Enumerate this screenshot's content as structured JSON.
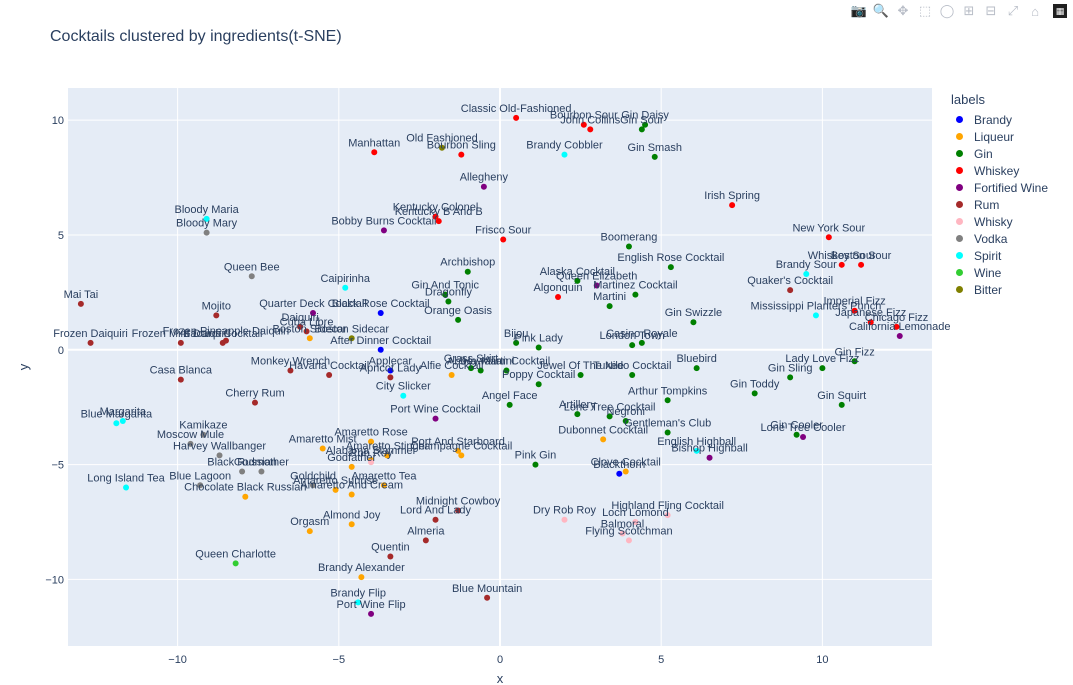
{
  "modebar": {
    "icons": [
      "camera-icon",
      "zoom-icon",
      "pan-icon",
      "box-select-icon",
      "lasso-icon",
      "zoom-in-icon",
      "zoom-out-icon",
      "autoscale-icon",
      "reset-axes-icon",
      "plotly-logo"
    ]
  },
  "chart_data": {
    "type": "scatter",
    "title": "Cocktails clustered by ingredients(t-SNE)",
    "xlabel": "x",
    "ylabel": "y",
    "xlim": [
      -13.4,
      13.4
    ],
    "ylim": [
      -12.9,
      11.4
    ],
    "xticks": [
      -10,
      -5,
      0,
      5,
      10
    ],
    "yticks": [
      -10,
      -5,
      0,
      5,
      10
    ],
    "grid": true,
    "legend": {
      "title": "labels",
      "position": "right"
    },
    "series": [
      {
        "name": "Brandy",
        "color": "#0000ff",
        "points": [
          {
            "x": -3.7,
            "y": 1.6,
            "label": "Black Rose Cocktail"
          },
          {
            "x": -3.7,
            "y": 0.0,
            "label": "After Dinner Cocktail"
          },
          {
            "x": -3.4,
            "y": -0.9,
            "label": "Applecar"
          },
          {
            "x": 3.7,
            "y": -5.4,
            "label": "Blackthorn"
          }
        ]
      },
      {
        "name": "Liqueur",
        "color": "#ffa500",
        "points": [
          {
            "x": -5.9,
            "y": 0.5,
            "label": "Boston Sidecar"
          },
          {
            "x": -1.5,
            "y": -1.1,
            "label": "Alfie Cocktail"
          },
          {
            "x": -4.0,
            "y": -4.0,
            "label": "Amaretto Rose"
          },
          {
            "x": -5.5,
            "y": -4.3,
            "label": "Amaretto Mist"
          },
          {
            "x": -4.0,
            "y": -4.8,
            "label": "Alabama Slammer"
          },
          {
            "x": -4.6,
            "y": -5.1,
            "label": "Godfather"
          },
          {
            "x": -3.5,
            "y": -4.6,
            "label": "Amaretto Stinger"
          },
          {
            "x": -5.1,
            "y": -6.1,
            "label": "Amaretto Sunrise"
          },
          {
            "x": -3.6,
            "y": -5.9,
            "label": "Amaretto Tea"
          },
          {
            "x": -4.6,
            "y": -6.3,
            "label": "Amaretto And Cream"
          },
          {
            "x": -7.9,
            "y": -6.4,
            "label": "Chocolate Black Russian"
          },
          {
            "x": -5.9,
            "y": -7.9,
            "label": "Orgasm"
          },
          {
            "x": -4.6,
            "y": -7.6,
            "label": "Almond Joy"
          },
          {
            "x": -4.3,
            "y": -9.9,
            "label": "Brandy Alexander"
          },
          {
            "x": 3.2,
            "y": -3.9,
            "label": "Dubonnet Cocktail"
          },
          {
            "x": -1.3,
            "y": -4.4,
            "label": "Port And Starboard"
          },
          {
            "x": -1.2,
            "y": -4.6,
            "label": "Champagne Cocktail"
          },
          {
            "x": 3.9,
            "y": -5.3,
            "label": "Clove Cocktail"
          }
        ]
      },
      {
        "name": "Gin",
        "color": "#008000",
        "points": [
          {
            "x": 4.5,
            "y": 9.8,
            "label": "Gin Daisy"
          },
          {
            "x": 4.4,
            "y": 9.6,
            "label": "Gin Sour"
          },
          {
            "x": 4.8,
            "y": 8.4,
            "label": "Gin Smash"
          },
          {
            "x": 4.0,
            "y": 4.5,
            "label": "Boomerang"
          },
          {
            "x": 5.3,
            "y": 3.6,
            "label": "English Rose Cocktail"
          },
          {
            "x": 2.4,
            "y": 3.0,
            "label": "Alaska Cocktail"
          },
          {
            "x": 4.2,
            "y": 2.4,
            "label": "Martinez Cocktail"
          },
          {
            "x": -1.0,
            "y": 3.4,
            "label": "Archbishop"
          },
          {
            "x": -1.7,
            "y": 2.4,
            "label": "Gin And Tonic"
          },
          {
            "x": -1.6,
            "y": 2.1,
            "label": "Dragonfly"
          },
          {
            "x": -1.3,
            "y": 1.3,
            "label": "Orange Oasis"
          },
          {
            "x": 3.4,
            "y": 1.9,
            "label": "Martini"
          },
          {
            "x": 6.0,
            "y": 1.2,
            "label": "Gin Swizzle"
          },
          {
            "x": 4.4,
            "y": 0.3,
            "label": "Casino Royale"
          },
          {
            "x": 4.1,
            "y": 0.2,
            "label": "London Town"
          },
          {
            "x": 0.5,
            "y": 0.3,
            "label": "Bijou"
          },
          {
            "x": 1.2,
            "y": 0.1,
            "label": "Pink Lady"
          },
          {
            "x": -0.9,
            "y": -0.8,
            "label": "Grass Skirt"
          },
          {
            "x": 0.2,
            "y": -0.9,
            "label": "Hawaiian Cocktail"
          },
          {
            "x": -0.6,
            "y": -0.9,
            "label": "Abbey Martini"
          },
          {
            "x": 2.5,
            "y": -1.1,
            "label": "Jewel Of The Nile"
          },
          {
            "x": 4.1,
            "y": -1.1,
            "label": "Tuxedo Cocktail"
          },
          {
            "x": 6.1,
            "y": -0.8,
            "label": "Bluebird"
          },
          {
            "x": 1.2,
            "y": -1.5,
            "label": "Poppy Cocktail"
          },
          {
            "x": 9.0,
            "y": -1.2,
            "label": "Gin Sling"
          },
          {
            "x": 11.0,
            "y": -0.5,
            "label": "Gin Fizz"
          },
          {
            "x": 10.0,
            "y": -0.8,
            "label": "Lady Love Fizz"
          },
          {
            "x": 7.9,
            "y": -1.9,
            "label": "Gin Toddy"
          },
          {
            "x": 5.2,
            "y": -2.2,
            "label": "Arthur Tompkins"
          },
          {
            "x": 10.6,
            "y": -2.4,
            "label": "Gin Squirt"
          },
          {
            "x": 0.3,
            "y": -2.4,
            "label": "Angel Face"
          },
          {
            "x": 2.4,
            "y": -2.8,
            "label": "Artillery"
          },
          {
            "x": 3.4,
            "y": -2.9,
            "label": "Lone Tree Cocktail"
          },
          {
            "x": 3.9,
            "y": -3.1,
            "label": "Negroni"
          },
          {
            "x": 5.2,
            "y": -3.6,
            "label": "Gentleman's Club"
          },
          {
            "x": 9.2,
            "y": -3.7,
            "label": "Gin Cooler"
          },
          {
            "x": 1.1,
            "y": -5.0,
            "label": "Pink Gin"
          }
        ]
      },
      {
        "name": "Whiskey",
        "color": "#ff0000",
        "points": [
          {
            "x": 0.5,
            "y": 10.1,
            "label": "Classic Old-Fashioned"
          },
          {
            "x": 2.6,
            "y": 9.8,
            "label": "Bourbon Sour"
          },
          {
            "x": 2.8,
            "y": 9.6,
            "label": "John Collins"
          },
          {
            "x": -3.9,
            "y": 8.6,
            "label": "Manhattan"
          },
          {
            "x": -1.2,
            "y": 8.5,
            "label": "Bourbon Sling"
          },
          {
            "x": 7.2,
            "y": 6.3,
            "label": "Irish Spring"
          },
          {
            "x": -2.0,
            "y": 5.8,
            "label": "Kentucky Colonel"
          },
          {
            "x": -1.9,
            "y": 5.6,
            "label": "Kentucky B And B"
          },
          {
            "x": 0.1,
            "y": 4.8,
            "label": "Frisco Sour"
          },
          {
            "x": 10.2,
            "y": 4.9,
            "label": "New York Sour"
          },
          {
            "x": 11.2,
            "y": 3.7,
            "label": "Boston Sour"
          },
          {
            "x": 10.6,
            "y": 3.7,
            "label": "Whiskey Sour"
          },
          {
            "x": 1.8,
            "y": 2.3,
            "label": "Algonquin"
          },
          {
            "x": 11.0,
            "y": 1.7,
            "label": "Imperial Fizz"
          },
          {
            "x": 11.5,
            "y": 1.2,
            "label": "Japanese Fizz"
          },
          {
            "x": 12.3,
            "y": 1.0,
            "label": "Chicago Fizz"
          }
        ]
      },
      {
        "name": "Fortified Wine",
        "color": "#800080",
        "points": [
          {
            "x": -0.5,
            "y": 7.1,
            "label": "Allegheny"
          },
          {
            "x": -3.6,
            "y": 5.2,
            "label": "Bobby Burns Cocktail"
          },
          {
            "x": 3.0,
            "y": 2.8,
            "label": "Queen Elizabeth"
          },
          {
            "x": -2.0,
            "y": -3.0,
            "label": "Port Wine Cocktail"
          },
          {
            "x": 6.5,
            "y": -4.7,
            "label": "Bishop Highball"
          },
          {
            "x": -5.8,
            "y": 1.6,
            "label": "Quarter Deck Cocktail"
          },
          {
            "x": 9.4,
            "y": -3.8,
            "label": "Lone Tree Cooler"
          },
          {
            "x": -4.0,
            "y": -11.5,
            "label": "Port Wine Flip"
          },
          {
            "x": 12.4,
            "y": 0.6,
            "label": "California Lemonade"
          }
        ]
      },
      {
        "name": "Rum",
        "color": "#a52a2a",
        "points": [
          {
            "x": -13.0,
            "y": 2.0,
            "label": "Mai Tai"
          },
          {
            "x": -8.8,
            "y": 1.5,
            "label": "Mojito"
          },
          {
            "x": -6.2,
            "y": 1.0,
            "label": "Daiquiri"
          },
          {
            "x": -6.0,
            "y": 0.8,
            "label": "Cuba Libre"
          },
          {
            "x": -12.7,
            "y": 0.3,
            "label": "Frozen Daiquiri"
          },
          {
            "x": -9.9,
            "y": 0.3,
            "label": "Frozen Mint Daiquiri"
          },
          {
            "x": -8.5,
            "y": 0.4,
            "label": "Frozen Pineapple Daiquiri"
          },
          {
            "x": -8.6,
            "y": 0.3,
            "label": "Bacardi Cocktail"
          },
          {
            "x": -9.9,
            "y": -1.3,
            "label": "Casa Blanca"
          },
          {
            "x": -6.5,
            "y": -0.9,
            "label": "Monkey Wrench"
          },
          {
            "x": -5.3,
            "y": -1.1,
            "label": "Havana Cocktail"
          },
          {
            "x": -3.4,
            "y": -1.2,
            "label": "Apricot Lady"
          },
          {
            "x": -7.6,
            "y": -2.3,
            "label": "Cherry Rum"
          },
          {
            "x": -3.4,
            "y": -9.0,
            "label": "Quentin"
          },
          {
            "x": -2.3,
            "y": -8.3,
            "label": "Almeria"
          },
          {
            "x": -1.3,
            "y": -7.0,
            "label": "Midnight Cowboy"
          },
          {
            "x": -0.4,
            "y": -10.8,
            "label": "Blue Mountain"
          },
          {
            "x": 9.0,
            "y": 2.6,
            "label": "Quaker's Cocktail"
          },
          {
            "x": -2.0,
            "y": -7.4,
            "label": "Lord And Lady"
          }
        ]
      },
      {
        "name": "Whisky",
        "color": "#ffb6c1",
        "points": [
          {
            "x": 2.0,
            "y": -7.4,
            "label": "Dry Rob Roy"
          },
          {
            "x": 4.2,
            "y": -7.5,
            "label": "Loch Lomond"
          },
          {
            "x": 3.8,
            "y": -8.0,
            "label": "Balmoral"
          },
          {
            "x": 4.0,
            "y": -8.3,
            "label": "Flying Scotchman"
          },
          {
            "x": 5.2,
            "y": -7.2,
            "label": "Highland Fling Cocktail"
          },
          {
            "x": -4.0,
            "y": -4.9,
            "label": "Rob Roy"
          }
        ]
      },
      {
        "name": "Vodka",
        "color": "#808080",
        "points": [
          {
            "x": -9.1,
            "y": 5.1,
            "label": "Bloody Mary"
          },
          {
            "x": -7.7,
            "y": 3.2,
            "label": "Queen Bee"
          },
          {
            "x": -9.2,
            "y": -3.7,
            "label": "Kamikaze"
          },
          {
            "x": -9.6,
            "y": -4.1,
            "label": "Moscow Mule"
          },
          {
            "x": -8.7,
            "y": -4.6,
            "label": "Harvey Wallbanger"
          },
          {
            "x": -8.0,
            "y": -5.3,
            "label": "Black Russian"
          },
          {
            "x": -7.4,
            "y": -5.3,
            "label": "Godmother"
          },
          {
            "x": -5.8,
            "y": -5.9,
            "label": "Goldchild"
          },
          {
            "x": -9.3,
            "y": -5.9,
            "label": "Blue Lagoon"
          }
        ]
      },
      {
        "name": "Spirit",
        "color": "#00ffff",
        "points": [
          {
            "x": 2.0,
            "y": 8.5,
            "label": "Brandy Cobbler"
          },
          {
            "x": -9.1,
            "y": 5.7,
            "label": "Bloody Maria"
          },
          {
            "x": -4.8,
            "y": 2.7,
            "label": "Caipirinha"
          },
          {
            "x": 9.5,
            "y": 3.3,
            "label": "Brandy Sour"
          },
          {
            "x": 9.8,
            "y": 1.5,
            "label": "Mississippi Planters Punch"
          },
          {
            "x": -3.0,
            "y": -2.0,
            "label": "City Slicker"
          },
          {
            "x": -11.9,
            "y": -3.2,
            "label": "Blue Margarita"
          },
          {
            "x": -11.7,
            "y": -3.1,
            "label": "Margarita"
          },
          {
            "x": -11.6,
            "y": -6.0,
            "label": "Long Island Tea"
          },
          {
            "x": 6.1,
            "y": -4.4,
            "label": "English Highball"
          },
          {
            "x": -4.4,
            "y": -11.0,
            "label": "Brandy Flip"
          }
        ]
      },
      {
        "name": "Wine",
        "color": "#32cd32",
        "points": [
          {
            "x": -8.2,
            "y": -9.3,
            "label": "Queen Charlotte"
          }
        ]
      },
      {
        "name": "Bitter",
        "color": "#808000",
        "points": [
          {
            "x": -1.8,
            "y": 8.8,
            "label": "Old Fashioned"
          },
          {
            "x": -4.6,
            "y": 0.5,
            "label": "Boston Sidecar"
          }
        ]
      }
    ]
  }
}
